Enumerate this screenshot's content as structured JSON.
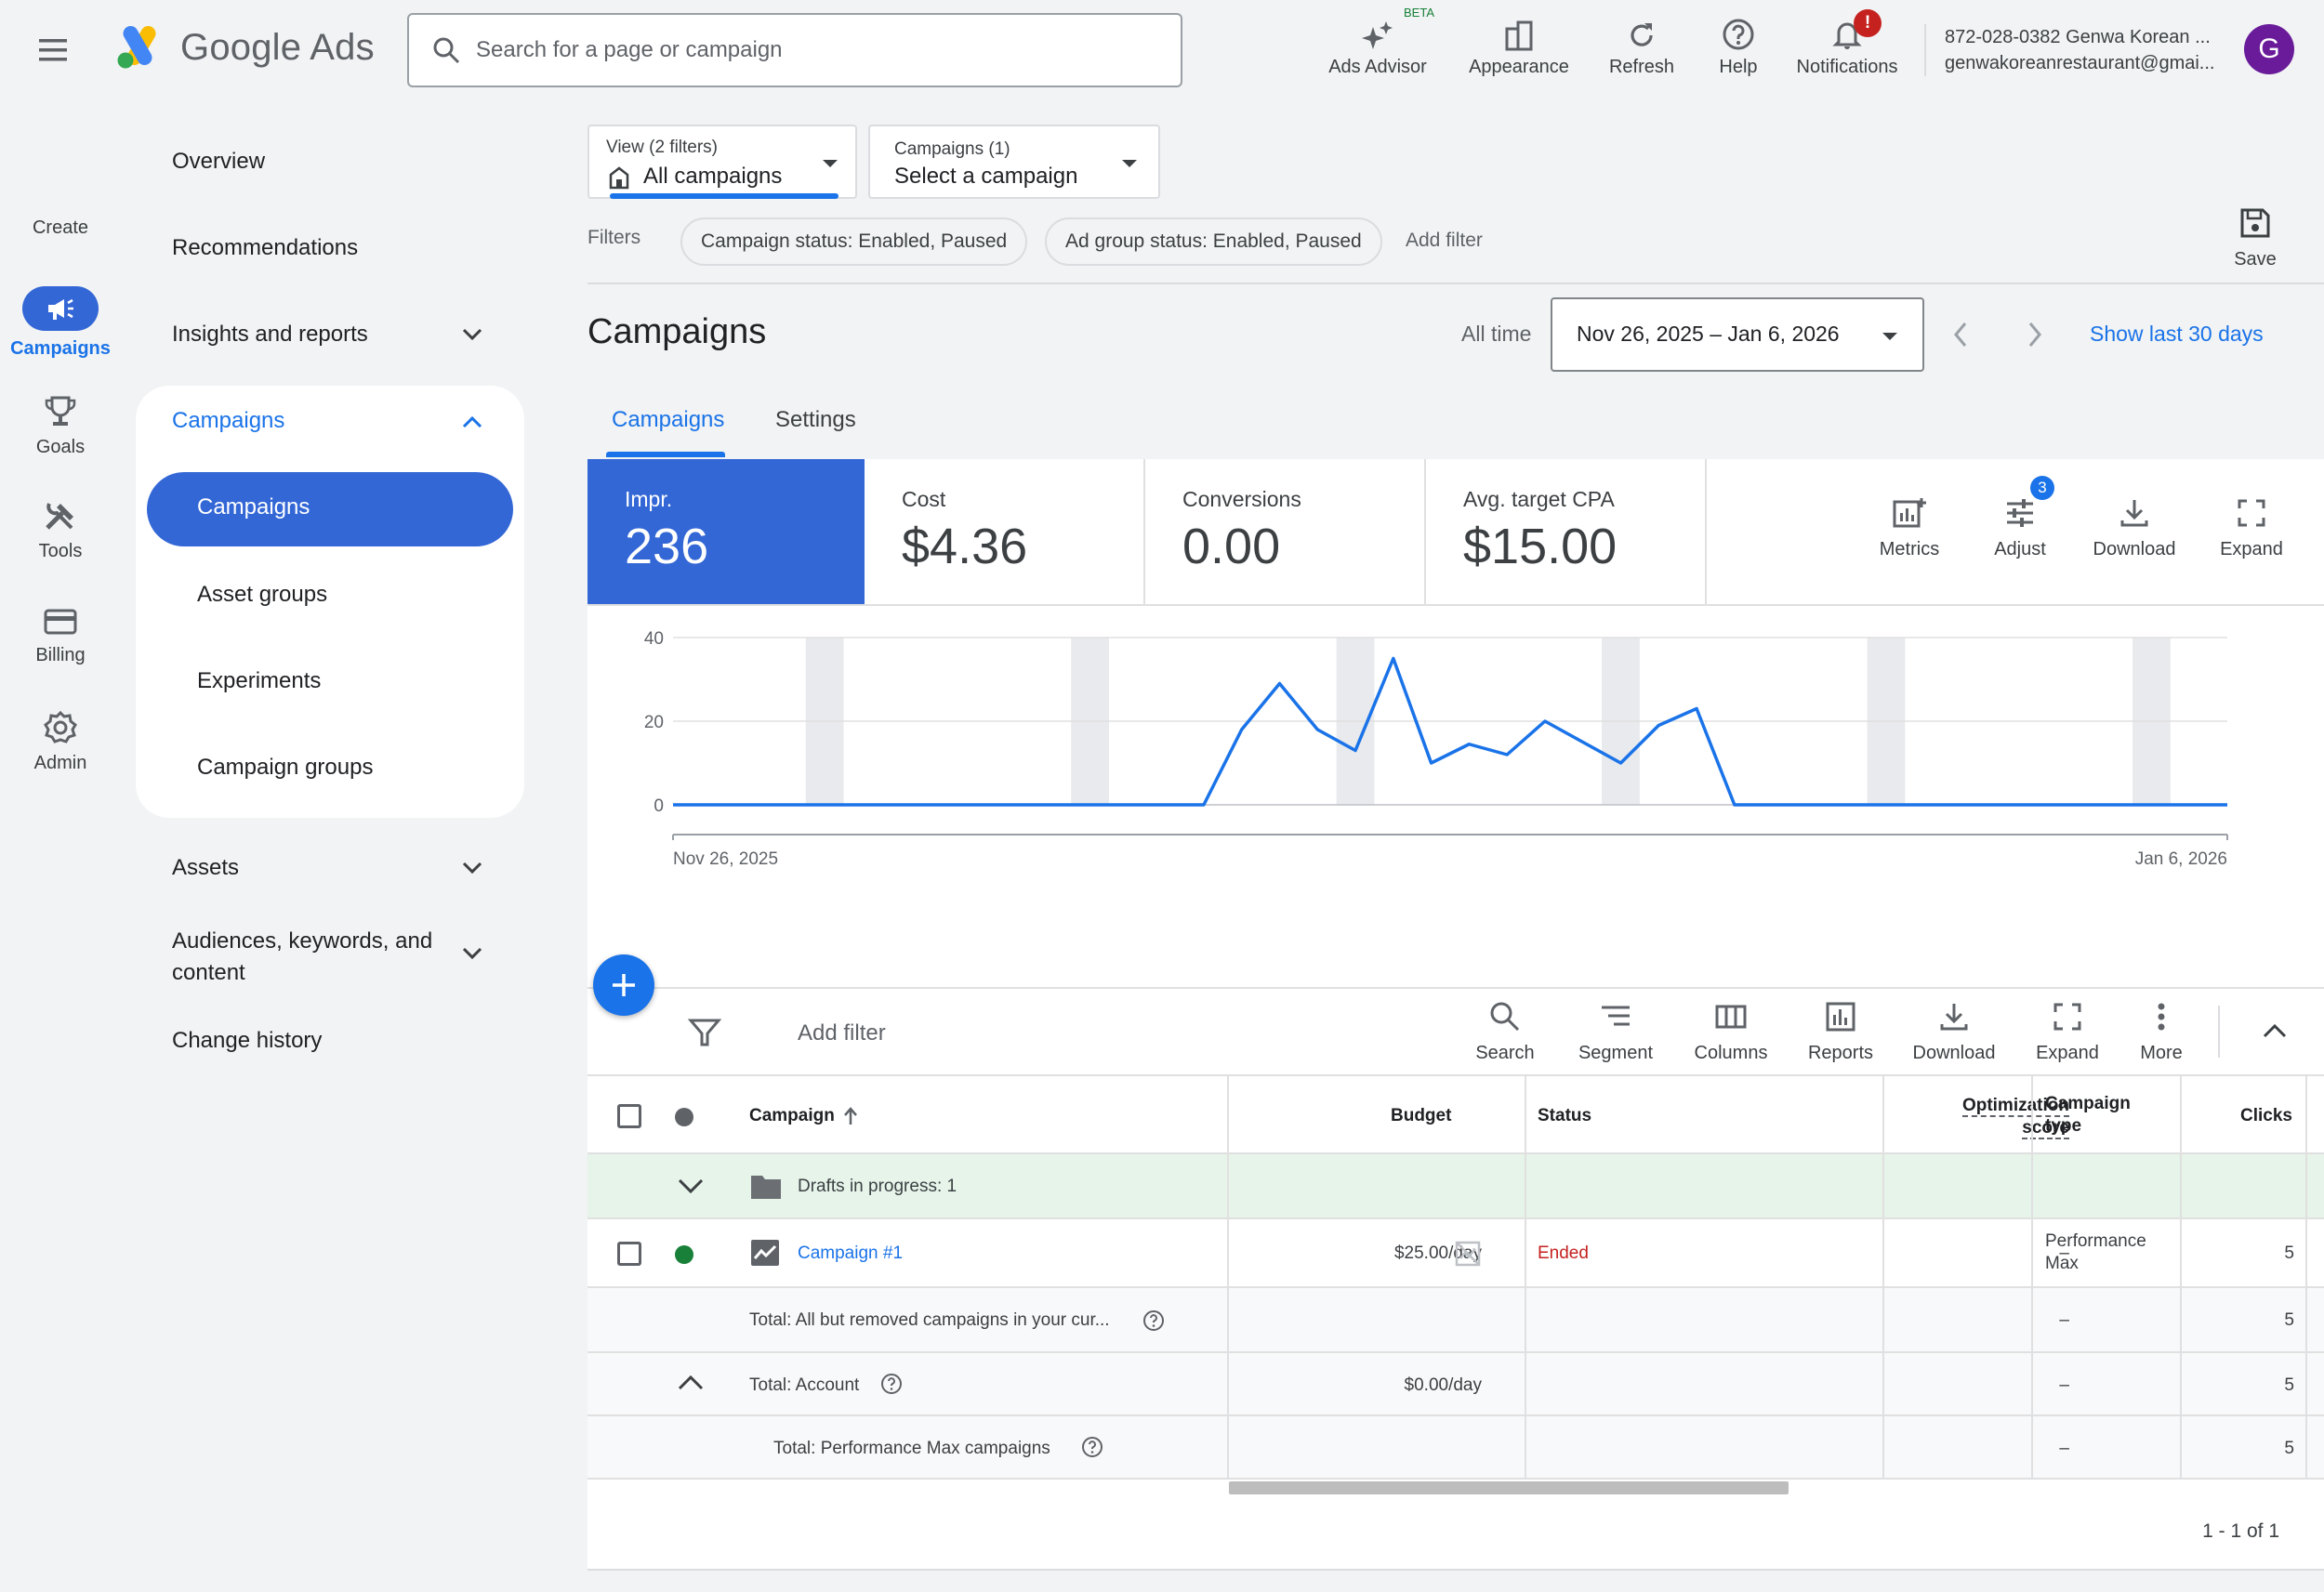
{
  "app": {
    "logo_text": "Google Ads"
  },
  "search": {
    "placeholder": "Search for a page or campaign"
  },
  "toolbar": {
    "ads_advisor": "Ads Advisor",
    "beta": "BETA",
    "appearance": "Appearance",
    "refresh": "Refresh",
    "help": "Help",
    "notifications": "Notifications",
    "notification_badge": "!"
  },
  "account": {
    "line1": "872-028-0382 Genwa Korean ...",
    "line2": "genwakoreanrestaurant@gmai...",
    "avatar_letter": "G"
  },
  "rail": {
    "create": "Create",
    "campaigns": "Campaigns",
    "goals": "Goals",
    "tools": "Tools",
    "billing": "Billing",
    "admin": "Admin"
  },
  "nav": {
    "overview": "Overview",
    "recommendations": "Recommendations",
    "insights": "Insights and reports",
    "campaigns_group": "Campaigns",
    "campaigns": "Campaigns",
    "asset_groups": "Asset groups",
    "experiments": "Experiments",
    "campaign_groups": "Campaign groups",
    "assets": "Assets",
    "audiences_line1": "Audiences, keywords, and",
    "audiences_line2": "content",
    "change_history": "Change history"
  },
  "view": {
    "label": "View (2 filters)",
    "value": "All campaigns"
  },
  "campaign_select": {
    "label": "Campaigns (1)",
    "value": "Select a campaign"
  },
  "filters": {
    "label": "Filters",
    "chip1": "Campaign status: Enabled, Paused",
    "chip2": "Ad group status: Enabled, Paused",
    "add": "Add filter",
    "save": "Save"
  },
  "page": {
    "title": "Campaigns",
    "range_label": "All time",
    "date_range": "Nov 26, 2025 – Jan 6, 2026",
    "show_last": "Show last 30 days"
  },
  "tabs": {
    "campaigns": "Campaigns",
    "settings": "Settings"
  },
  "stats": {
    "impr_label": "Impr.",
    "impr_value": "236",
    "cost_label": "Cost",
    "cost_value": "$4.36",
    "conv_label": "Conversions",
    "conv_value": "0.00",
    "cpa_label": "Avg. target CPA",
    "cpa_value": "$15.00"
  },
  "chart_actions": {
    "metrics": "Metrics",
    "adjust": "Adjust",
    "adjust_badge": "3",
    "download": "Download",
    "expand": "Expand"
  },
  "chart_data": {
    "type": "line",
    "title": "",
    "xlabel": "",
    "ylabel": "",
    "ylim": [
      0,
      40
    ],
    "yticks": [
      "0",
      "20",
      "40"
    ],
    "x_start_label": "Nov 26, 2025",
    "x_end_label": "Jan 6, 2026",
    "x": [
      "Nov 26",
      "Nov 27",
      "Nov 28",
      "Nov 29",
      "Nov 30",
      "Dec 1",
      "Dec 2",
      "Dec 3",
      "Dec 4",
      "Dec 5",
      "Dec 6",
      "Dec 7",
      "Dec 8",
      "Dec 9",
      "Dec 10",
      "Dec 11",
      "Dec 12",
      "Dec 13",
      "Dec 14",
      "Dec 15",
      "Dec 16",
      "Dec 17",
      "Dec 18",
      "Dec 19",
      "Dec 20",
      "Dec 21",
      "Dec 22",
      "Dec 23",
      "Dec 24",
      "Dec 25",
      "Dec 26",
      "Dec 27",
      "Dec 28",
      "Dec 29",
      "Dec 30",
      "Dec 31",
      "Jan 1",
      "Jan 2",
      "Jan 3",
      "Jan 4",
      "Jan 5",
      "Jan 6"
    ],
    "series": [
      {
        "values": [
          0,
          0,
          0,
          0,
          0,
          0,
          0,
          0,
          0,
          0,
          0,
          0,
          0,
          0,
          0,
          18,
          29,
          18,
          13,
          35,
          10,
          14.5,
          12,
          20,
          15,
          10,
          19,
          23,
          0,
          0,
          0,
          0,
          0,
          0,
          0,
          0,
          0,
          0,
          0,
          0,
          0,
          0
        ]
      }
    ],
    "weekend_bands": [
      [
        "Nov 29",
        "Nov 30"
      ],
      [
        "Dec 6",
        "Dec 7"
      ],
      [
        "Dec 13",
        "Dec 14"
      ],
      [
        "Dec 20",
        "Dec 21"
      ],
      [
        "Dec 27",
        "Dec 28"
      ],
      [
        "Jan 3",
        "Jan 4"
      ]
    ],
    "grid": true,
    "line_color": "#1a73e8"
  },
  "table_toolbar": {
    "add_filter": "Add filter",
    "search": "Search",
    "segment": "Segment",
    "columns": "Columns",
    "reports": "Reports",
    "download": "Download",
    "expand": "Expand",
    "more": "More"
  },
  "table": {
    "headers": {
      "campaign": "Campaign",
      "budget": "Budget",
      "status": "Status",
      "opt1": "Optimization",
      "opt2": "score",
      "type1": "Campaign",
      "type2": "type",
      "clicks": "Clicks"
    },
    "drafts": "Drafts in progress: 1",
    "row": {
      "name": "Campaign #1",
      "budget": "$25.00/day",
      "status": "Ended",
      "opt": "–",
      "type1": "Performance",
      "type2": "Max",
      "clicks": "5"
    },
    "total1": {
      "label": "Total: All but removed campaigns in your cur...",
      "opt": "–",
      "clicks": "5"
    },
    "total2": {
      "label": "Total: Account",
      "budget": "$0.00/day",
      "opt": "–",
      "clicks": "5"
    },
    "total3": {
      "label": "Total: Performance Max campaigns",
      "opt": "–",
      "clicks": "5"
    },
    "pagination": "1 - 1 of 1"
  },
  "colors": {
    "accent": "#1a73e8",
    "nav_active": "#3367d6",
    "ended": "#c5221f",
    "enabled_dot": "#188038",
    "drafts_bg": "#e6f4ea"
  }
}
